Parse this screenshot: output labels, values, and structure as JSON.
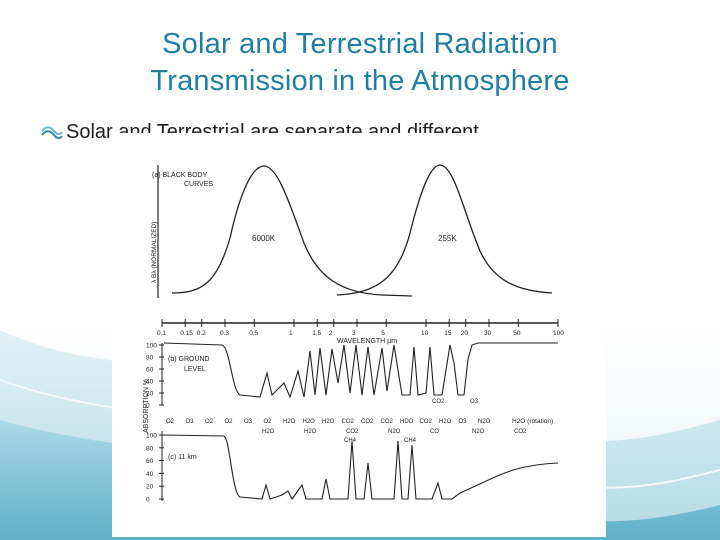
{
  "slide": {
    "title_line1": "Solar and Terrestrial Radiation",
    "title_line2": "Transmission in the Atmosphere",
    "bullet": "Solar and Terrestrial are separate and different",
    "bullet_icon": "double-wave-bullet-icon",
    "colors": {
      "title": "#1f7ea6",
      "accent_teal": "#6bbdd3",
      "text": "#1e1e1e"
    }
  },
  "figure": {
    "panel_a_label": "(a)  BLACK BODY",
    "panel_a_label2": "CURVES",
    "panel_a_ylabel": "λ Bλ (NORMALIZED)",
    "curve_solar_label": "6000K",
    "curve_terrestrial_label": "255K",
    "wavelength_ticks": [
      "0.1",
      "0.15",
      "0.2",
      "0.3",
      "0.5",
      "1",
      "1.5",
      "2",
      "3",
      "5",
      "10",
      "15",
      "20",
      "30",
      "50",
      "100"
    ],
    "wavelength_label": "WAVELENGTH μm",
    "ylabel_absorption": "ABSORPTION %",
    "panel_b_label": "(b)  GROUND",
    "panel_b_label2": "LEVEL",
    "panel_c_label": "(c)  11 km",
    "absorption_ticks": [
      "100",
      "80",
      "60",
      "40",
      "20",
      "0"
    ],
    "gas_labels_b_top": [
      "CO2",
      "O3"
    ],
    "gas_labels_b_bottom": [
      "O2",
      "O3",
      "O2",
      "O2",
      "O3",
      "O2",
      "H2O",
      "H2O",
      "H2O",
      "CO2",
      "CO2",
      "CO2",
      "HDO",
      "CO2",
      "H2O",
      "O3",
      "N2O",
      "H2O (rotation)"
    ],
    "gas_labels_b_sub": [
      "H2O",
      "H2O",
      "CO2",
      "N2O",
      "CO",
      "N2O",
      "CO2"
    ],
    "gas_labels_b_sub2": [
      "CH4",
      "CH4"
    ]
  }
}
